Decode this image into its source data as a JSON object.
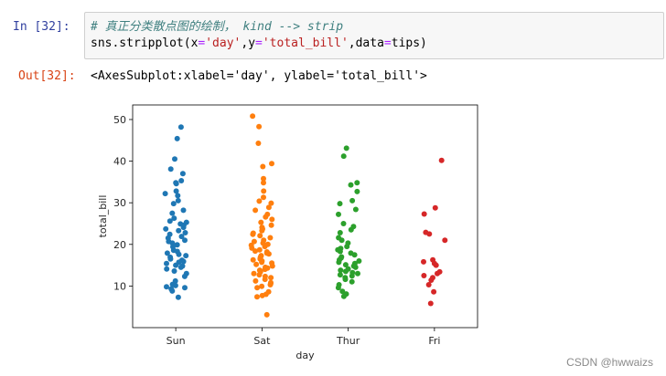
{
  "cell": {
    "in_prompt": "In  [32]:",
    "comment": "# 真正分类散点图的绘制， kind --> strip",
    "code_parts": [
      "sns.stripplot(x",
      "=",
      "'day'",
      ",y",
      "=",
      "'total_bill'",
      ",data",
      "=",
      "tips)"
    ],
    "out_prompt": "Out[32]:",
    "out_text": "<AxesSubplot:xlabel='day', ylabel='total_bill'>"
  },
  "watermark": "CSDN @hwwaizs",
  "chart_data": {
    "type": "scatter",
    "xlabel": "day",
    "ylabel": "total_bill",
    "categories": [
      "Sun",
      "Sat",
      "Thur",
      "Fri"
    ],
    "ylim": [
      0,
      53.5
    ],
    "yticks": [
      10,
      20,
      30,
      40,
      50
    ],
    "grid": false,
    "legend": "none",
    "colors": [
      "#1f77b4",
      "#ff7f0e",
      "#2ca02c",
      "#d62728"
    ],
    "series": [
      {
        "category": "Sun",
        "values": [
          48.2,
          45.4,
          40.5,
          38.1,
          37.0,
          35.3,
          34.8,
          34.6,
          32.8,
          32.2,
          31.7,
          30.5,
          29.8,
          28.2,
          27.5,
          26.3,
          25.6,
          25.3,
          24.9,
          24.6,
          24.1,
          23.7,
          23.3,
          22.8,
          22.4,
          21.9,
          21.5,
          21.0,
          20.7,
          20.3,
          19.9,
          19.4,
          18.6,
          18.3,
          17.9,
          17.6,
          17.3,
          16.9,
          16.5,
          16.2,
          15.9,
          15.7,
          15.4,
          15.0,
          14.8,
          14.5,
          14.1,
          13.6,
          13.0,
          12.3,
          11.2,
          10.4,
          10.1,
          9.8,
          9.6,
          9.3,
          8.8,
          7.3
        ]
      },
      {
        "category": "Sat",
        "values": [
          50.8,
          48.3,
          44.3,
          39.4,
          38.7,
          35.8,
          34.8,
          32.8,
          31.3,
          30.4,
          29.9,
          28.9,
          28.2,
          27.2,
          26.6,
          26.0,
          25.3,
          24.6,
          24.1,
          23.7,
          23.3,
          22.7,
          22.4,
          22.1,
          21.6,
          21.0,
          20.7,
          20.3,
          20.0,
          19.8,
          19.5,
          19.1,
          18.7,
          18.4,
          18.2,
          17.9,
          17.7,
          17.3,
          17.0,
          16.8,
          16.5,
          16.3,
          16.0,
          15.7,
          15.5,
          15.2,
          14.8,
          14.5,
          14.3,
          14.0,
          13.8,
          13.4,
          13.0,
          12.7,
          12.3,
          12.0,
          11.6,
          11.2,
          10.8,
          10.6,
          10.3,
          9.9,
          9.6,
          8.6,
          8.0,
          7.7,
          7.4,
          3.1
        ]
      },
      {
        "category": "Thur",
        "values": [
          43.1,
          41.2,
          34.8,
          34.3,
          32.7,
          30.5,
          29.8,
          28.4,
          27.2,
          25.0,
          24.3,
          23.5,
          22.8,
          21.6,
          21.0,
          20.3,
          19.5,
          19.0,
          18.7,
          18.3,
          17.9,
          17.5,
          17.0,
          16.7,
          16.3,
          16.0,
          15.7,
          15.4,
          15.1,
          14.8,
          14.5,
          14.1,
          13.8,
          13.5,
          13.2,
          13.0,
          12.7,
          12.4,
          12.0,
          11.6,
          11.0,
          10.3,
          9.6,
          8.7,
          8.1,
          7.5
        ]
      },
      {
        "category": "Fri",
        "values": [
          40.2,
          28.8,
          27.3,
          22.9,
          22.5,
          21.0,
          16.3,
          15.8,
          15.4,
          15.0,
          13.4,
          13.0,
          12.5,
          12.0,
          11.4,
          10.3,
          8.6,
          5.8
        ]
      }
    ]
  }
}
